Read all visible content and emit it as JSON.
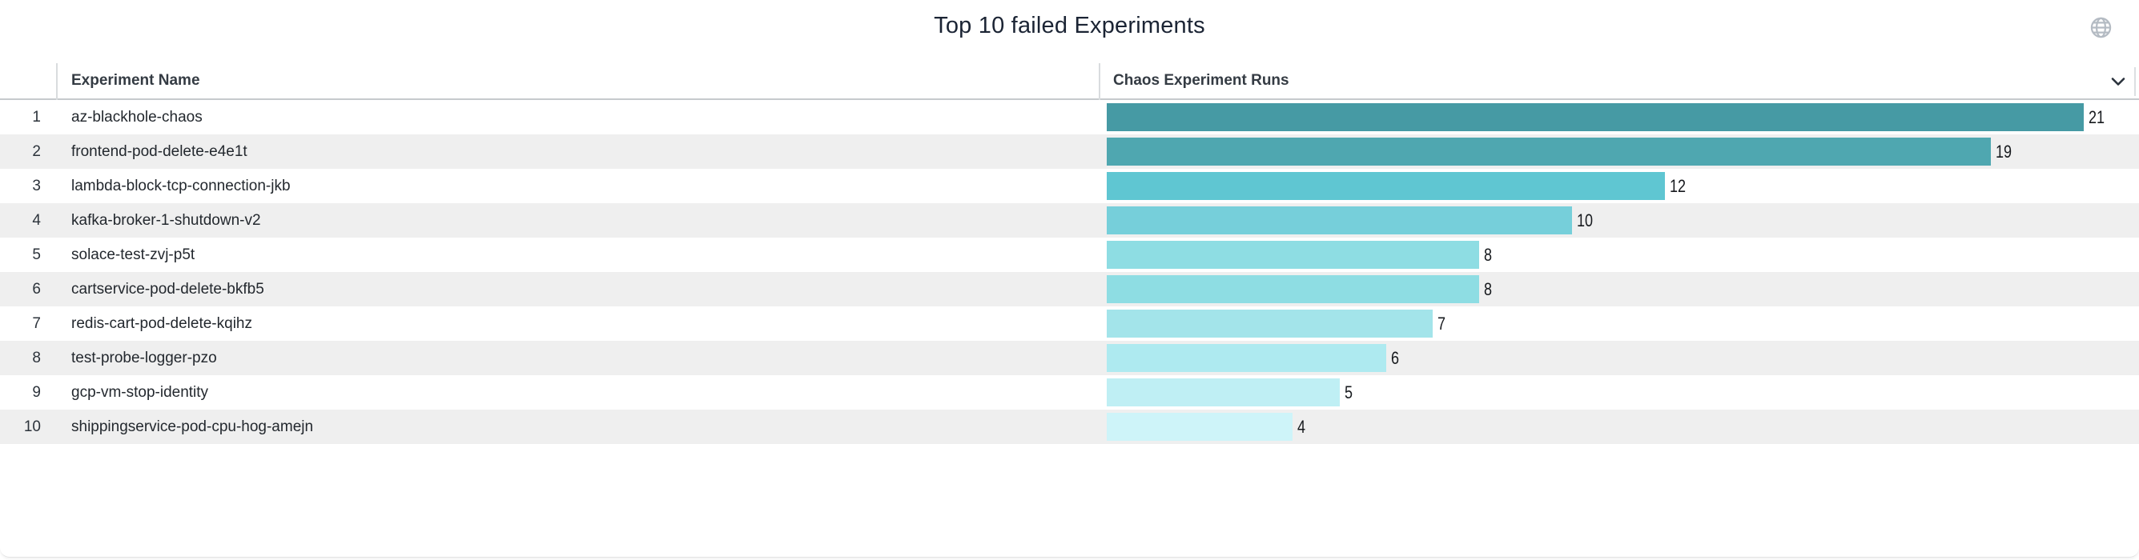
{
  "title": "Top 10 failed Experiments",
  "header_icons": {
    "globe_icon": "globe-icon",
    "chevron_icon": "chevron-down-icon"
  },
  "table": {
    "columns": [
      "Experiment Name",
      "Chaos Experiment Runs"
    ],
    "rows": [
      {
        "rank": "1",
        "name": "az-blackhole-chaos",
        "runs": 21,
        "bar_color": "#469aa4"
      },
      {
        "rank": "2",
        "name": "frontend-pod-delete-e4e1t",
        "runs": 19,
        "bar_color": "#4fa7b0"
      },
      {
        "rank": "3",
        "name": "lambda-block-tcp-connection-jkb",
        "runs": 12,
        "bar_color": "#5fc6d2"
      },
      {
        "rank": "4",
        "name": "kafka-broker-1-shutdown-v2",
        "runs": 10,
        "bar_color": "#76cfda"
      },
      {
        "rank": "5",
        "name": "solace-test-zvj-p5t",
        "runs": 8,
        "bar_color": "#8edde3"
      },
      {
        "rank": "6",
        "name": "cartservice-pod-delete-bkfb5",
        "runs": 8,
        "bar_color": "#8edde3"
      },
      {
        "rank": "7",
        "name": "redis-cart-pod-delete-kqihz",
        "runs": 7,
        "bar_color": "#a3e4ea"
      },
      {
        "rank": "8",
        "name": "test-probe-logger-pzo",
        "runs": 6,
        "bar_color": "#aeeaf0"
      },
      {
        "rank": "9",
        "name": "gcp-vm-stop-identity",
        "runs": 5,
        "bar_color": "#bfeff4"
      },
      {
        "rank": "10",
        "name": "shippingservice-pod-cpu-hog-amejn",
        "runs": 4,
        "bar_color": "#cef4f9"
      }
    ]
  },
  "chart_data": {
    "type": "bar",
    "orientation": "horizontal",
    "title": "Top 10 failed Experiments",
    "series_label": "Chaos Experiment Runs",
    "categories": [
      "az-blackhole-chaos",
      "frontend-pod-delete-e4e1t",
      "lambda-block-tcp-connection-jkb",
      "kafka-broker-1-shutdown-v2",
      "solace-test-zvj-p5t",
      "cartservice-pod-delete-bkfb5",
      "redis-cart-pod-delete-kqihz",
      "test-probe-logger-pzo",
      "gcp-vm-stop-identity",
      "shippingservice-pod-cpu-hog-amejn"
    ],
    "values": [
      21,
      19,
      12,
      10,
      8,
      8,
      7,
      6,
      5,
      4
    ],
    "xlim": [
      0,
      22
    ],
    "grid": false,
    "legend": "none",
    "value_labels_shown": true,
    "bar_colors": [
      "#469aa4",
      "#4fa7b0",
      "#5fc6d2",
      "#76cfda",
      "#8edde3",
      "#8edde3",
      "#a3e4ea",
      "#aeeaf0",
      "#bfeff4",
      "#cef4f9"
    ]
  },
  "colors": {
    "title_text": "#1b2434",
    "header_text": "#343b43",
    "row_text": "#23282e",
    "row_stripe": "#efefef",
    "header_border": "#c6cacd",
    "column_divider": "#d9dcde",
    "globe_icon": "#b4bbc3",
    "chevron_icon": "#2a323c",
    "value_label_text": "#16191d"
  }
}
